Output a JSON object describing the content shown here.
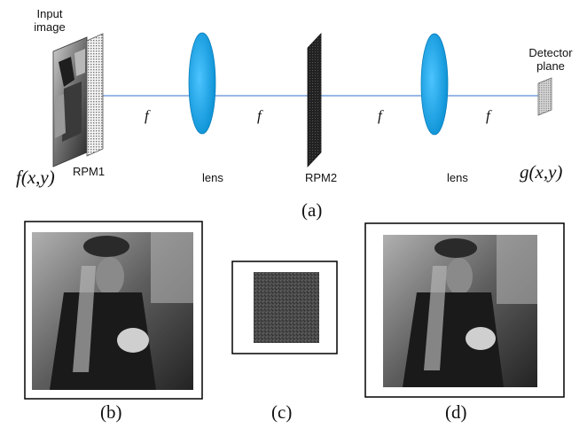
{
  "diagram": {
    "input_label": "Input image",
    "rpm1_label": "RPM1",
    "lens1_label": "lens",
    "rpm2_label": "RPM2",
    "lens2_label": "lens",
    "detector_label": "Detector plane",
    "input_function": "f(x,y)",
    "output_function": "g(x,y)",
    "focal_labels": [
      "f",
      "f",
      "f",
      "f"
    ],
    "caption_a": "(a)"
  },
  "panels": {
    "caption_b": "(b)",
    "caption_c": "(c)",
    "caption_d": "(d)"
  },
  "colors": {
    "lens_fill": "#1aa8ec",
    "optical_axis": "#5b8fd6",
    "rpm2": "#1c1c1c"
  },
  "icons": {
    "input_image": "photo-thumbnail",
    "rpm1": "dotted-phase-mask",
    "rpm2": "dark-phase-mask",
    "detector": "detector-grid"
  }
}
